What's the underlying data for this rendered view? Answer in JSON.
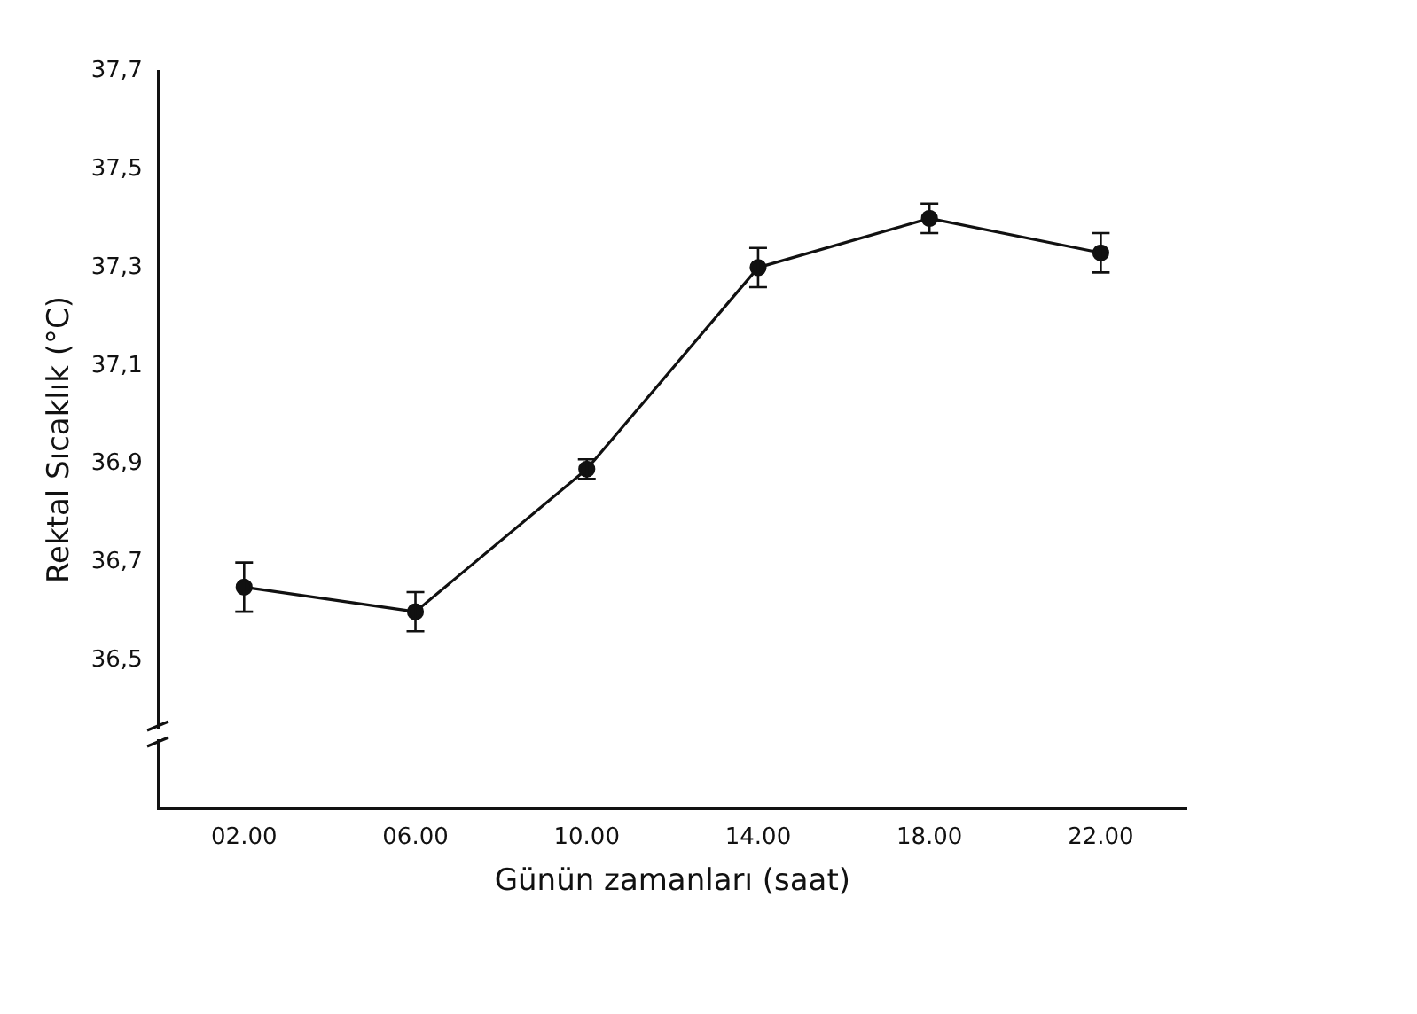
{
  "chart_data": {
    "type": "line",
    "xlabel": "Günün zamanları (saat)",
    "ylabel": "Rektal Sıcaklık (°C)",
    "categories": [
      "02.00",
      "06.00",
      "10.00",
      "14.00",
      "18.00",
      "22.00"
    ],
    "series": [
      {
        "color": "#111111",
        "values": [
          36.65,
          36.6,
          36.89,
          37.3,
          37.4,
          37.33
        ],
        "errors": [
          0.05,
          0.04,
          0.02,
          0.04,
          0.03,
          0.04
        ]
      }
    ],
    "ylim": [
      36.2,
      37.7
    ],
    "yticks": [
      {
        "value": 36.5,
        "label": "36,5"
      },
      {
        "value": 36.7,
        "label": "36,7"
      },
      {
        "value": 36.9,
        "label": "36,9"
      },
      {
        "value": 37.1,
        "label": "37,1"
      },
      {
        "value": 37.3,
        "label": "37,3"
      },
      {
        "value": 37.5,
        "label": "37,5"
      },
      {
        "value": 37.7,
        "label": "37,7"
      }
    ],
    "grid": false,
    "legend": false,
    "marker": "circle",
    "line_style": "solid"
  }
}
